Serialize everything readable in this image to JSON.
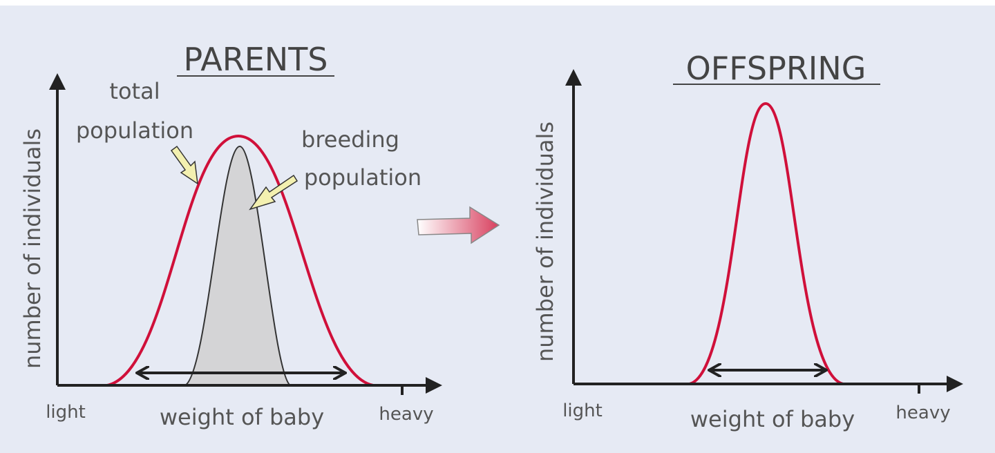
{
  "parents": {
    "title": "PARENTS",
    "y_label": "number of individuals",
    "x_label": "weight of baby",
    "x_start": "light",
    "x_end": "heavy",
    "total_population": [
      "total",
      "population"
    ],
    "breeding_population": [
      "breeding",
      "population"
    ]
  },
  "offspring": {
    "title": "OFFSPRING",
    "y_label": "number of individuals",
    "x_label": "weight of baby",
    "x_start": "light",
    "x_end": "heavy"
  }
}
